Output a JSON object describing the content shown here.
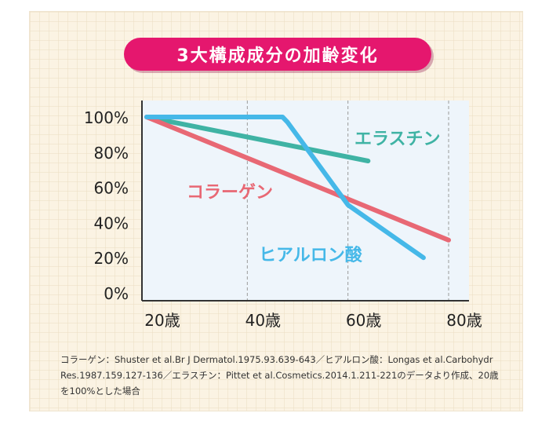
{
  "title": "3大構成成分の加齢変化",
  "chart_data": {
    "type": "line",
    "title": "3大構成成分の加齢変化",
    "xlabel": "",
    "ylabel": "",
    "xlim": [
      20,
      85
    ],
    "ylim": [
      0,
      105
    ],
    "x_ticks": [
      {
        "value": 20,
        "label": "20歳"
      },
      {
        "value": 40,
        "label": "40歳"
      },
      {
        "value": 60,
        "label": "60歳"
      },
      {
        "value": 80,
        "label": "80歳"
      }
    ],
    "y_ticks": [
      {
        "value": 0,
        "label": "0%"
      },
      {
        "value": 20,
        "label": "20%"
      },
      {
        "value": 40,
        "label": "40%"
      },
      {
        "value": 60,
        "label": "60%"
      },
      {
        "value": 80,
        "label": "80%"
      },
      {
        "value": 100,
        "label": "100%"
      }
    ],
    "grid": "vertical dashed at 40, 60, 80",
    "series": [
      {
        "name": "エラスチン",
        "color": "#3fb3a4",
        "x": [
          20,
          64
        ],
        "y": [
          100,
          75
        ]
      },
      {
        "name": "コラーゲン",
        "color": "#e86874",
        "x": [
          20,
          80
        ],
        "y": [
          100,
          30
        ]
      },
      {
        "name": "ヒアルロン酸",
        "color": "#45b8e8",
        "x": [
          20,
          47,
          48,
          60,
          75
        ],
        "y": [
          100,
          100,
          97,
          50,
          20
        ]
      }
    ],
    "series_label_colors": {
      "エラスチン": "#3fb3a4",
      "コラーゲン": "#e86874",
      "ヒアルロン酸": "#45b8e8"
    }
  },
  "note": "コラーゲン：Shuster et al.Br J Dermatol.1975.93.639-643／ヒアルロン酸：Longas et al.Carbohydr Res.1987.159.127-136／エラスチン：Pittet et al.Cosmetics.2014.1.211-221のデータより作成、20歳を100%とした場合"
}
